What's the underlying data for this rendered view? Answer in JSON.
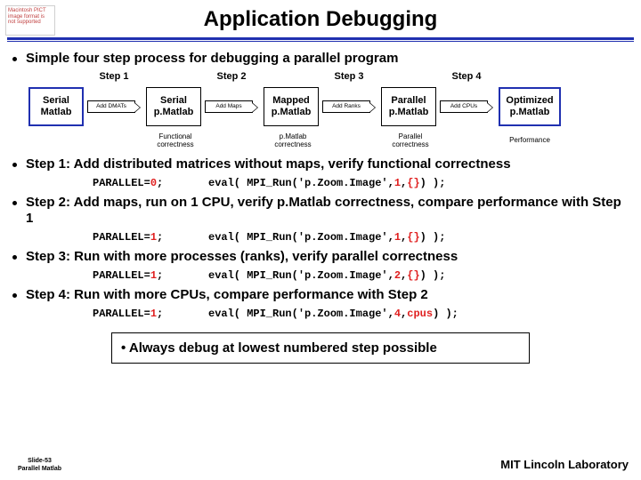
{
  "placeholder": "Macintosh PICT image format is not supported",
  "title": "Application Debugging",
  "bullets": {
    "b0": "Simple four step process for debugging a parallel program",
    "b1": "Step 1: Add distributed matrices without maps, verify functional correctness",
    "b2": "Step 2: Add maps, run on 1 CPU, verify p.Matlab correctness, compare performance with Step 1",
    "b3": "Step 3: Run with more processes (ranks), verify parallel correctness",
    "b4": "Step 4: Run with more CPUs, compare performance with Step 2"
  },
  "flow": {
    "steps": {
      "s1": "Step 1",
      "s2": "Step 2",
      "s3": "Step 3",
      "s4": "Step 4"
    },
    "boxes": {
      "n0": "Serial\nMatlab",
      "n1": "Serial\np.Matlab",
      "n2": "Mapped\np.Matlab",
      "n3": "Parallel\np.Matlab",
      "n4": "Optimized\np.Matlab"
    },
    "arrows": {
      "a0": "Add DMATs",
      "a1": "Add Maps",
      "a2": "Add Ranks",
      "a3": "Add CPUs"
    },
    "captions": {
      "c0": "Functional\ncorrectness",
      "c1": "p.Matlab\ncorrectness",
      "c2": "Parallel\ncorrectness",
      "c3": "Performance"
    }
  },
  "code": {
    "r1": {
      "left_a": "PARALLEL=",
      "left_b": "0",
      "left_c": ";",
      "right_a": "eval( MPI_Run('p.Zoom.Image',",
      "right_b": "1",
      "right_c": ",",
      "right_d": "{}",
      "right_e": ") );"
    },
    "r2": {
      "left_a": "PARALLEL=",
      "left_b": "1",
      "left_c": ";",
      "right_a": "eval( MPI_Run('p.Zoom.Image',",
      "right_b": "1",
      "right_c": ",",
      "right_d": "{}",
      "right_e": ") );"
    },
    "r3": {
      "left_a": "PARALLEL=",
      "left_b": "1",
      "left_c": ";",
      "right_a": "eval( MPI_Run('p.Zoom.Image',",
      "right_b": "2",
      "right_c": ",",
      "right_d": "{}",
      "right_e": ") );"
    },
    "r4": {
      "left_a": "PARALLEL=",
      "left_b": "1",
      "left_c": ";",
      "right_a": "eval( MPI_Run('p.Zoom.Image',",
      "right_b": "4",
      "right_c": ",",
      "right_d": "cpus",
      "right_e": ") );"
    }
  },
  "note": "Always debug at lowest numbered step possible",
  "footer": {
    "left_a": "Slide-53",
    "left_b": "Parallel Matlab",
    "right": "MIT Lincoln Laboratory"
  },
  "colors": {
    "rule": "#2030b0",
    "red": "#e02020"
  }
}
